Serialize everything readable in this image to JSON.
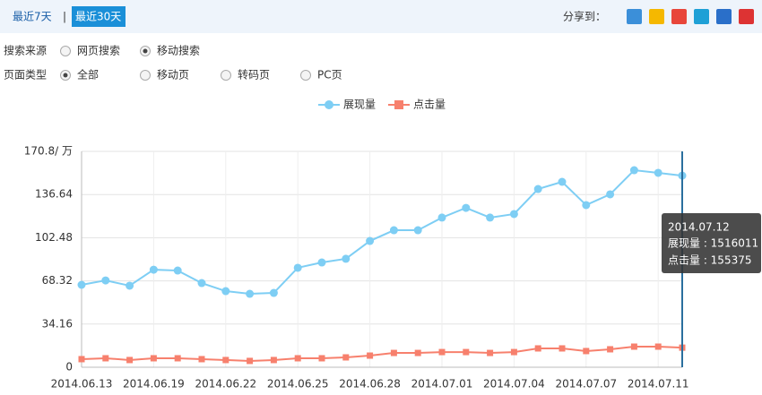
{
  "toolbar": {
    "tabs": [
      "最近7天",
      "最近30天"
    ],
    "active": 1,
    "share_label": "分享到："
  },
  "filters": [
    {
      "label": "搜索来源",
      "options": [
        "网页搜索",
        "移动搜索"
      ],
      "selected": 1
    },
    {
      "label": "页面类型",
      "options": [
        "全部",
        "移动页",
        "转码页",
        "PC页"
      ],
      "selected": 0
    }
  ],
  "chart_data": {
    "type": "line",
    "categories": [
      "2014.06.13",
      null,
      null,
      "2014.06.19",
      null,
      null,
      "2014.06.22",
      null,
      null,
      "2014.06.25",
      null,
      null,
      "2014.06.28",
      null,
      null,
      "2014.07.01",
      null,
      null,
      "2014.07.04",
      null,
      null,
      "2014.07.07",
      null,
      null,
      "2014.07.11",
      null
    ],
    "series": [
      {
        "name": "展现量",
        "color": "#7ecef4",
        "marker": "circle",
        "values": [
          65.2,
          68.7,
          64.5,
          77.2,
          76.5,
          66.6,
          60.2,
          58.1,
          58.8,
          78.7,
          82.9,
          85.8,
          99.9,
          108.4,
          108.4,
          118.4,
          126.1,
          118.4,
          121.2,
          141.0,
          146.7,
          128.3,
          136.8,
          155.9,
          153.8,
          151.6
        ]
      },
      {
        "name": "点击量",
        "color": "#f7806d",
        "marker": "square",
        "values": [
          6.4,
          7.1,
          5.7,
          7.1,
          7.1,
          6.4,
          5.7,
          5.0,
          5.7,
          7.1,
          7.1,
          7.8,
          9.2,
          11.3,
          11.3,
          12.0,
          12.0,
          11.3,
          12.0,
          14.9,
          14.9,
          12.8,
          14.2,
          16.3,
          16.3,
          15.5
        ]
      }
    ],
    "ylim": [
      0,
      170.8
    ],
    "yticks": [
      0,
      34.16,
      68.32,
      102.48,
      136.64,
      {
        "value": 170.8,
        "label": "170.8/ 万"
      }
    ],
    "grid": true,
    "tooltip": {
      "index": 25,
      "title": "2014.07.12",
      "lines": [
        "展现量 : 1516011",
        "点击量 : 155375"
      ]
    }
  }
}
